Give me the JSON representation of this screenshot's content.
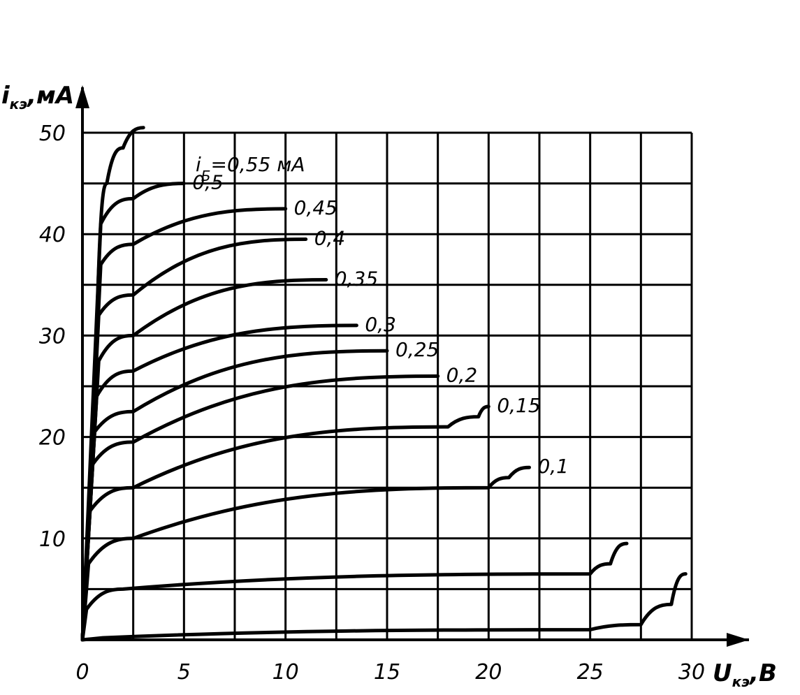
{
  "chart_data": {
    "type": "line",
    "xlabel": {
      "main": "U",
      "sub": "кэ",
      "unit": ",В"
    },
    "ylabel": {
      "main": "i",
      "sub": "кэ",
      "unit": ",мА"
    },
    "xlim": [
      0,
      30
    ],
    "ylim": [
      0,
      50
    ],
    "x_ticks": [
      "0",
      "5",
      "10",
      "15",
      "20",
      "25",
      "30"
    ],
    "y_ticks": [
      "10",
      "20",
      "30",
      "40",
      "50"
    ],
    "grid": true,
    "param_label": {
      "main": "i",
      "sub": "Б",
      "value": "=0,55 мА"
    },
    "series": [
      {
        "name": "0,55",
        "x": [
          0,
          0.7,
          1.2,
          2,
          3
        ],
        "y": [
          0,
          30,
          45,
          48.5,
          50.5
        ]
      },
      {
        "name": "0,5",
        "x": [
          0,
          0.9,
          2.5,
          5
        ],
        "y": [
          0,
          41,
          43.5,
          45
        ]
      },
      {
        "name": "0,45",
        "x": [
          0,
          0.9,
          2.5,
          10
        ],
        "y": [
          0,
          37,
          39,
          42.5
        ]
      },
      {
        "name": "0,4",
        "x": [
          0,
          0.8,
          2.5,
          11
        ],
        "y": [
          0,
          32,
          34,
          39.5
        ]
      },
      {
        "name": "0,35",
        "x": [
          0,
          0.8,
          2.5,
          12
        ],
        "y": [
          0,
          27.5,
          30,
          35.5
        ]
      },
      {
        "name": "0,3",
        "x": [
          0,
          0.7,
          2.5,
          13.5
        ],
        "y": [
          0,
          24,
          26.5,
          31
        ]
      },
      {
        "name": "0,25",
        "x": [
          0,
          0.6,
          2.5,
          15
        ],
        "y": [
          0,
          20.5,
          22.5,
          28.5
        ]
      },
      {
        "name": "0,2",
        "x": [
          0,
          0.4,
          2.5,
          17.5
        ],
        "y": [
          0,
          17,
          19.5,
          26
        ]
      },
      {
        "name": "0,15",
        "x": [
          0,
          0.3,
          2.5,
          18,
          19.5,
          20
        ],
        "y": [
          0,
          12.5,
          15,
          21,
          22,
          23
        ]
      },
      {
        "name": "0,1",
        "x": [
          0,
          0.3,
          2.5,
          20,
          21,
          22
        ],
        "y": [
          0,
          7.5,
          10,
          15,
          16,
          17
        ]
      },
      {
        "name": "",
        "x": [
          0,
          0.2,
          2,
          25,
          26,
          26.8
        ],
        "y": [
          0,
          3,
          5,
          6.5,
          7.5,
          9.5
        ]
      },
      {
        "name": "",
        "x": [
          0,
          1,
          25,
          27.5,
          29,
          29.7
        ],
        "y": [
          0,
          0.2,
          1,
          1.5,
          3.5,
          6.5
        ]
      }
    ]
  }
}
